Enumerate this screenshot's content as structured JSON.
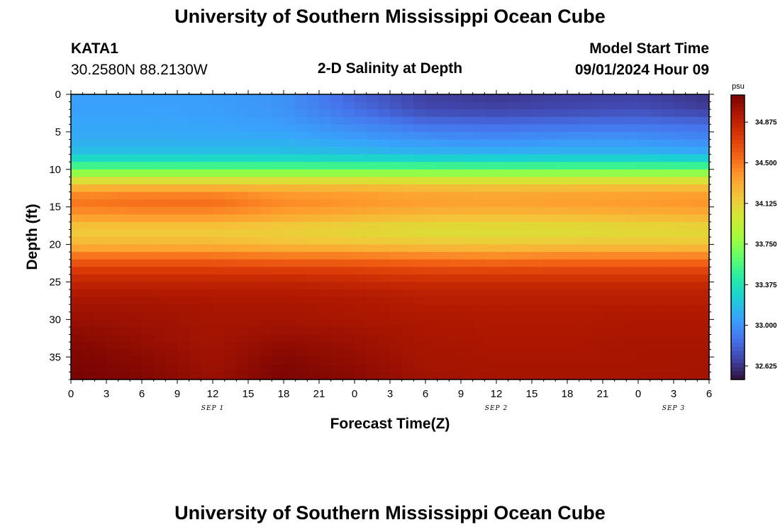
{
  "header": {
    "title": "University of Southern Mississippi Ocean Cube",
    "station": "KATA1",
    "coords": "30.2580N  88.2130W",
    "subtitle": "2-D Salinity at Depth",
    "model_label": "Model Start Time",
    "model_time": "09/01/2024 Hour 09"
  },
  "footer": {
    "title": "University of Southern Mississippi Ocean Cube"
  },
  "chart_data": {
    "type": "heatmap",
    "xlabel": "Forecast Time(Z)",
    "ylabel": "Depth (ft)",
    "x_ticks": [
      "0",
      "3",
      "6",
      "9",
      "12",
      "15",
      "18",
      "21",
      "0",
      "3",
      "6",
      "9",
      "12",
      "15",
      "18",
      "21",
      "0",
      "3",
      "6"
    ],
    "x_range_hours": [
      0,
      54
    ],
    "date_labels": [
      {
        "label": "SEP 1",
        "hour": 12
      },
      {
        "label": "SEP 2",
        "hour": 36
      },
      {
        "label": "SEP 3",
        "hour": 51
      }
    ],
    "y_ticks": [
      0,
      5,
      10,
      15,
      20,
      25,
      30,
      35
    ],
    "ylim": [
      38,
      0
    ],
    "colorbar": {
      "unit": "psu",
      "min": 32.5,
      "max": 35.125,
      "ticks": [
        "32.625",
        "33.000",
        "33.375",
        "33.750",
        "34.125",
        "34.500",
        "34.875"
      ]
    },
    "colormap": [
      "#30123b",
      "#4145ab",
      "#4675ed",
      "#39a2fc",
      "#1bcfd4",
      "#24eca6",
      "#61fc6c",
      "#a4fc3b",
      "#d1e834",
      "#f3c63a",
      "#fe9b2d",
      "#f36315",
      "#d93806",
      "#b11901",
      "#7a0403"
    ],
    "depths_ft": [
      0,
      2,
      4,
      6,
      8,
      10,
      12,
      14,
      16,
      18,
      20,
      22,
      24,
      26,
      28,
      30,
      32,
      34,
      36,
      38
    ],
    "times_h": [
      0,
      6,
      12,
      18,
      24,
      30,
      36,
      42,
      48,
      54
    ],
    "salinity_psu": [
      [
        33.05,
        33.05,
        33.04,
        33.0,
        32.8,
        32.66,
        32.64,
        32.66,
        32.67,
        32.62
      ],
      [
        33.06,
        33.06,
        33.05,
        33.0,
        32.85,
        32.7,
        32.68,
        32.7,
        32.72,
        32.66
      ],
      [
        33.08,
        33.08,
        33.07,
        33.04,
        32.95,
        32.86,
        32.84,
        32.86,
        32.87,
        32.84
      ],
      [
        33.1,
        33.1,
        33.1,
        33.1,
        33.05,
        33.0,
        32.98,
        33.0,
        33.0,
        32.96
      ],
      [
        33.2,
        33.2,
        33.2,
        33.2,
        33.18,
        33.15,
        33.14,
        33.15,
        33.15,
        33.12
      ],
      [
        33.62,
        33.62,
        33.62,
        33.62,
        33.62,
        33.62,
        33.62,
        33.62,
        33.62,
        33.62
      ],
      [
        34.2,
        34.2,
        34.2,
        34.2,
        34.2,
        34.18,
        34.18,
        34.18,
        34.18,
        34.18
      ],
      [
        34.52,
        34.55,
        34.55,
        34.45,
        34.42,
        34.38,
        34.37,
        34.38,
        34.4,
        34.42
      ],
      [
        34.4,
        34.42,
        34.42,
        34.35,
        34.3,
        34.26,
        34.25,
        34.26,
        34.28,
        34.3
      ],
      [
        34.15,
        34.15,
        34.15,
        34.12,
        34.08,
        34.04,
        34.03,
        34.04,
        34.06,
        34.08
      ],
      [
        34.25,
        34.25,
        34.25,
        34.22,
        34.2,
        34.18,
        34.17,
        34.18,
        34.18,
        34.18
      ],
      [
        34.58,
        34.58,
        34.58,
        34.55,
        34.55,
        34.52,
        34.5,
        34.52,
        34.52,
        34.52
      ],
      [
        34.8,
        34.8,
        34.8,
        34.8,
        34.78,
        34.75,
        34.75,
        34.75,
        34.75,
        34.75
      ],
      [
        34.92,
        34.92,
        34.92,
        34.92,
        34.9,
        34.88,
        34.88,
        34.88,
        34.88,
        34.88
      ],
      [
        34.98,
        34.98,
        34.96,
        34.96,
        34.95,
        34.92,
        34.92,
        34.92,
        34.92,
        34.92
      ],
      [
        35.02,
        35.0,
        34.98,
        34.98,
        34.96,
        34.95,
        34.94,
        34.94,
        34.95,
        34.95
      ],
      [
        35.07,
        35.02,
        34.98,
        35.02,
        35.0,
        34.96,
        34.95,
        34.95,
        34.96,
        34.96
      ],
      [
        35.1,
        35.05,
        34.99,
        35.07,
        35.02,
        34.97,
        34.96,
        34.96,
        34.97,
        34.97
      ],
      [
        35.12,
        35.08,
        35.0,
        35.1,
        35.05,
        34.98,
        34.97,
        34.97,
        34.97,
        34.98
      ],
      [
        35.13,
        35.1,
        35.02,
        35.12,
        35.07,
        35.0,
        34.98,
        34.98,
        34.98,
        34.98
      ]
    ]
  }
}
